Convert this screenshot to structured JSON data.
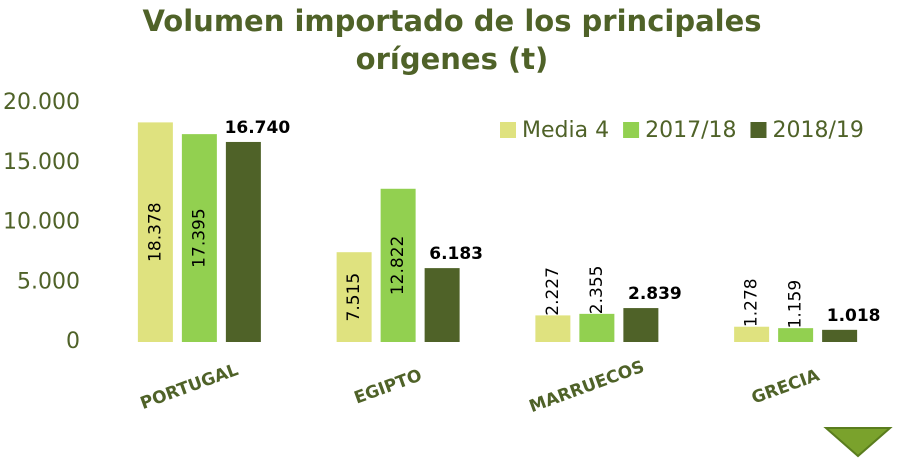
{
  "chart_data": {
    "type": "bar",
    "title": "Volumen importado de los principales orígenes (t)",
    "categories": [
      "PORTUGAL",
      "EGIPTO",
      "MARRUECOS",
      "GRECIA"
    ],
    "series": [
      {
        "name": "Media 4",
        "color": "#dfe27f",
        "values": [
          18378,
          7515,
          2227,
          1278
        ],
        "value_labels": [
          "18.378",
          "7.515",
          "2.227",
          "1.278"
        ]
      },
      {
        "name": "2017/18",
        "color": "#92d050",
        "values": [
          17395,
          12822,
          2355,
          1159
        ],
        "value_labels": [
          "17.395",
          "12.822",
          "2.355",
          "1.159"
        ]
      },
      {
        "name": "2018/19",
        "color": "#4f6228",
        "values": [
          16740,
          6183,
          2839,
          1018
        ],
        "value_labels": [
          "16.740",
          "6.183",
          "2.839",
          "1.018"
        ]
      }
    ],
    "ylim": [
      0,
      20000
    ],
    "yticks": [
      0,
      {
        "value": 5000,
        "label": "5.000"
      },
      {
        "value": 10000,
        "label": "10.000"
      },
      {
        "value": 15000,
        "label": "15.000"
      },
      {
        "value": 20000,
        "label": "20.000"
      }
    ],
    "grid": false,
    "legend": "upper right"
  }
}
